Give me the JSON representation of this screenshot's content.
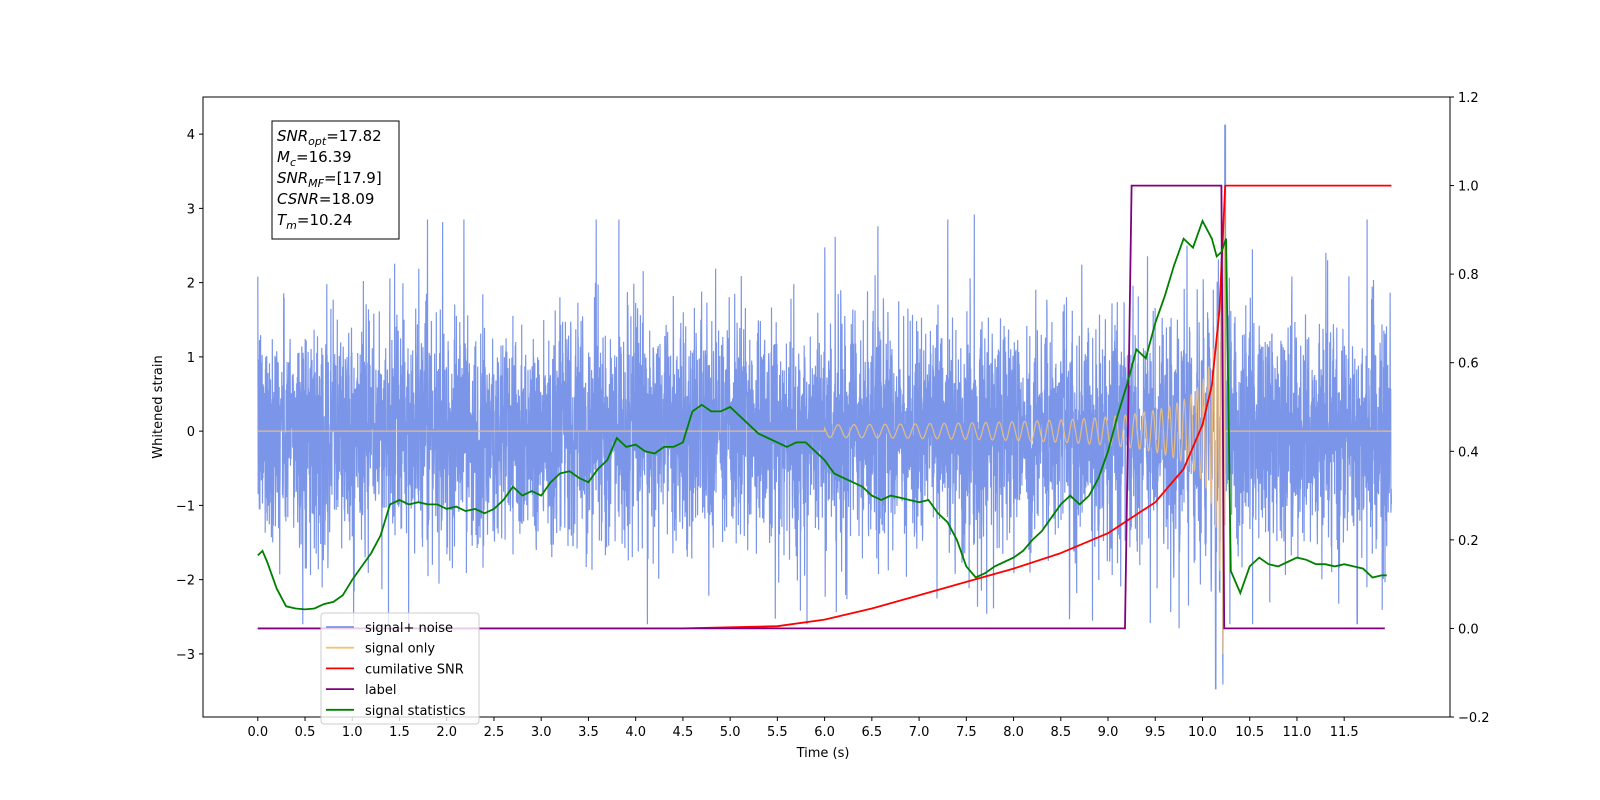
{
  "chart_data": {
    "type": "line",
    "xlabel": "Time (s)",
    "ylabel": "Whitened strain",
    "xlim": [
      -0.58,
      12.62
    ],
    "ylim": [
      -3.85,
      4.5
    ],
    "ylim_right": [
      -0.2,
      1.2
    ],
    "x_ticks": [
      "0.0",
      "0.5",
      "1.0",
      "1.5",
      "2.0",
      "2.5",
      "3.0",
      "3.5",
      "4.0",
      "4.5",
      "5.0",
      "5.5",
      "6.0",
      "6.5",
      "7.0",
      "7.5",
      "8.0",
      "8.5",
      "9.0",
      "9.5",
      "10.0",
      "10.5",
      "11.0",
      "11.5"
    ],
    "y_ticks_left": [
      -3,
      -2,
      -1,
      0,
      1,
      2,
      3,
      4
    ],
    "y_ticks_right": [
      "−0.2",
      "0.0",
      "0.2",
      "0.4",
      "0.6",
      "0.8",
      "1.0",
      "1.2"
    ],
    "legend_position": "lower-left",
    "annotation": {
      "lines": [
        {
          "main": "SNR",
          "sub": "opt",
          "value": "=17.82"
        },
        {
          "main": "M",
          "sub": "c",
          "value": "=16.39"
        },
        {
          "main": "SNR",
          "sub": "MF",
          "value": "=[17.9]"
        },
        {
          "main": "CSNR",
          "sub": "",
          "value": "=18.09"
        },
        {
          "main": "T",
          "sub": "m",
          "value": "=10.24"
        }
      ]
    },
    "series": [
      {
        "name": "signal+ noise",
        "color": "#7b96e8",
        "axis": "left",
        "noise_sigma": 0.75,
        "noise_spikes_max": 2.85,
        "visual_min": -3.47,
        "visual_max": 4.12,
        "merger_time": 10.24
      },
      {
        "name": "signal only",
        "color": "#f5c27a",
        "axis": "left",
        "chirp": {
          "t_start": 0.0,
          "t_merger": 10.24,
          "t_end": 12.0,
          "peak_amplitude": 3.0
        }
      },
      {
        "name": "cumilative SNR",
        "color": "#ff0000",
        "axis": "right",
        "x": [
          0.0,
          4.5,
          5.5,
          6.0,
          6.5,
          7.0,
          7.5,
          8.0,
          8.5,
          9.0,
          9.5,
          9.8,
          10.0,
          10.1,
          10.18,
          10.24,
          12.0
        ],
        "y": [
          0.0,
          0.0,
          0.005,
          0.02,
          0.045,
          0.075,
          0.105,
          0.135,
          0.17,
          0.215,
          0.285,
          0.36,
          0.46,
          0.55,
          0.72,
          1.0,
          1.0
        ]
      },
      {
        "name": "label",
        "color": "#800080",
        "axis": "right",
        "x": [
          0.0,
          9.18,
          9.25,
          10.2,
          10.23,
          11.93
        ],
        "y": [
          0.0,
          0.0,
          1.0,
          1.0,
          0.0,
          0.0
        ]
      },
      {
        "name": "signal statistics",
        "color": "#008000",
        "axis": "right",
        "x": [
          0.0,
          0.05,
          0.1,
          0.2,
          0.3,
          0.4,
          0.5,
          0.6,
          0.7,
          0.8,
          0.9,
          1.0,
          1.1,
          1.2,
          1.3,
          1.4,
          1.5,
          1.6,
          1.7,
          1.8,
          1.9,
          2.0,
          2.1,
          2.2,
          2.3,
          2.4,
          2.5,
          2.6,
          2.7,
          2.8,
          2.9,
          3.0,
          3.1,
          3.2,
          3.3,
          3.4,
          3.5,
          3.6,
          3.7,
          3.8,
          3.9,
          4.0,
          4.1,
          4.2,
          4.3,
          4.4,
          4.5,
          4.6,
          4.7,
          4.8,
          4.9,
          5.0,
          5.1,
          5.2,
          5.3,
          5.4,
          5.5,
          5.6,
          5.7,
          5.8,
          5.9,
          6.0,
          6.1,
          6.2,
          6.3,
          6.4,
          6.5,
          6.6,
          6.7,
          6.8,
          6.9,
          7.0,
          7.1,
          7.2,
          7.3,
          7.4,
          7.5,
          7.6,
          7.7,
          7.8,
          7.9,
          8.0,
          8.1,
          8.2,
          8.3,
          8.4,
          8.5,
          8.6,
          8.7,
          8.8,
          8.9,
          9.0,
          9.1,
          9.2,
          9.3,
          9.4,
          9.5,
          9.6,
          9.7,
          9.8,
          9.9,
          10.0,
          10.1,
          10.15,
          10.2,
          10.25,
          10.3,
          10.4,
          10.5,
          10.6,
          10.7,
          10.8,
          10.9,
          11.0,
          11.1,
          11.2,
          11.3,
          11.4,
          11.5,
          11.6,
          11.7,
          11.8,
          11.9,
          11.95
        ],
        "y": [
          0.165,
          0.175,
          0.15,
          0.09,
          0.05,
          0.045,
          0.043,
          0.045,
          0.055,
          0.06,
          0.075,
          0.11,
          0.14,
          0.17,
          0.21,
          0.28,
          0.29,
          0.28,
          0.285,
          0.28,
          0.28,
          0.27,
          0.275,
          0.265,
          0.27,
          0.26,
          0.27,
          0.29,
          0.32,
          0.3,
          0.31,
          0.3,
          0.33,
          0.35,
          0.355,
          0.34,
          0.33,
          0.36,
          0.38,
          0.43,
          0.41,
          0.415,
          0.4,
          0.395,
          0.41,
          0.41,
          0.42,
          0.49,
          0.505,
          0.49,
          0.49,
          0.5,
          0.48,
          0.46,
          0.44,
          0.43,
          0.42,
          0.41,
          0.42,
          0.42,
          0.4,
          0.38,
          0.35,
          0.34,
          0.33,
          0.32,
          0.3,
          0.29,
          0.3,
          0.295,
          0.29,
          0.285,
          0.29,
          0.26,
          0.24,
          0.2,
          0.14,
          0.115,
          0.125,
          0.14,
          0.15,
          0.16,
          0.175,
          0.2,
          0.22,
          0.25,
          0.28,
          0.3,
          0.28,
          0.3,
          0.34,
          0.4,
          0.48,
          0.55,
          0.63,
          0.61,
          0.69,
          0.75,
          0.82,
          0.88,
          0.86,
          0.92,
          0.88,
          0.84,
          0.85,
          0.88,
          0.13,
          0.08,
          0.14,
          0.16,
          0.145,
          0.14,
          0.15,
          0.16,
          0.155,
          0.145,
          0.145,
          0.14,
          0.145,
          0.14,
          0.135,
          0.115,
          0.12,
          0.12
        ]
      }
    ]
  }
}
